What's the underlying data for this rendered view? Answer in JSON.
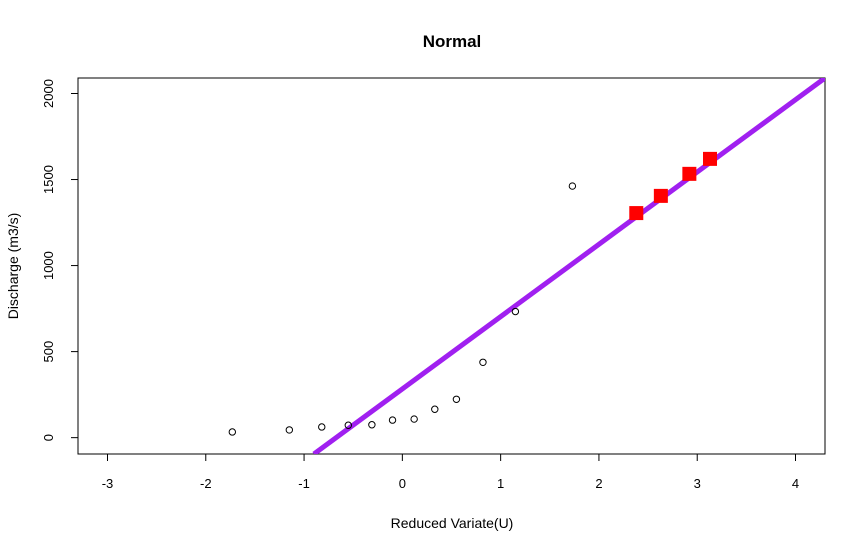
{
  "chart_data": {
    "type": "scatter",
    "title": "Normal",
    "xlabel": "Reduced Variate(U)",
    "ylabel": "Discharge (m3/s)",
    "xlim": [
      -3.3,
      4.3
    ],
    "ylim": [
      -95,
      2090
    ],
    "xticks": [
      -3,
      -2,
      -1,
      0,
      1,
      2,
      3,
      4
    ],
    "yticks": [
      0,
      500,
      1000,
      1500,
      2000
    ],
    "grid": false,
    "colors": {
      "line": "#a020f0",
      "predicted": "#ff0000",
      "observed": "#000000"
    },
    "series": [
      {
        "marker": "open-circle",
        "x": [
          -1.73,
          -1.15,
          -0.82,
          -0.55,
          -0.31,
          -0.1,
          0.12,
          0.33,
          0.55,
          0.82,
          1.15,
          1.73
        ],
        "y": [
          33,
          45,
          62,
          72,
          75,
          102,
          108,
          165,
          223,
          438,
          733,
          1462
        ]
      },
      {
        "marker": "filled-square",
        "x": [
          2.38,
          2.63,
          2.92,
          3.13
        ],
        "y": [
          1305,
          1405,
          1533,
          1620
        ]
      },
      {
        "marker": "thick-line",
        "x": [
          -0.9,
          4.3
        ],
        "y": [
          -95,
          2090
        ]
      }
    ]
  }
}
